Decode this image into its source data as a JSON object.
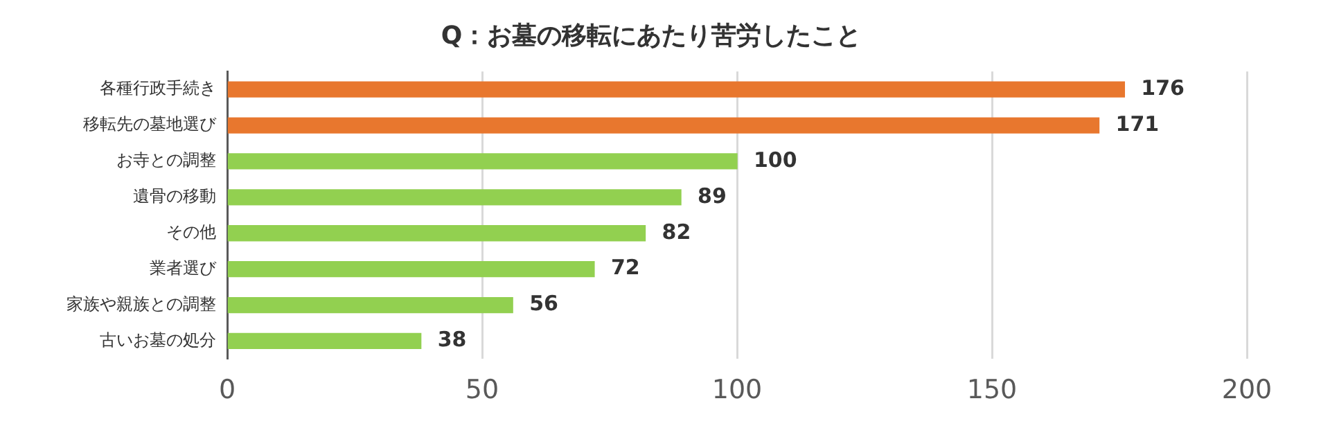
{
  "chart_data": {
    "type": "bar",
    "orientation": "horizontal",
    "title": "Q：お墓の移転にあたり苦労したこと",
    "categories": [
      "各種行政手続き",
      "移転先の墓地選び",
      "お寺との調整",
      "遺骨の移動",
      "その他",
      "業者選び",
      "家族や親族との調整",
      "古いお墓の処分"
    ],
    "values": [
      176,
      171,
      100,
      89,
      82,
      72,
      56,
      38
    ],
    "colors": [
      "#e8772e",
      "#e8772e",
      "#92d050",
      "#92d050",
      "#92d050",
      "#92d050",
      "#92d050",
      "#92d050"
    ],
    "xlim": [
      0,
      200
    ],
    "xticks": [
      0,
      50,
      100,
      150,
      200
    ],
    "grid": "x",
    "legend": false,
    "data_labels": true
  }
}
